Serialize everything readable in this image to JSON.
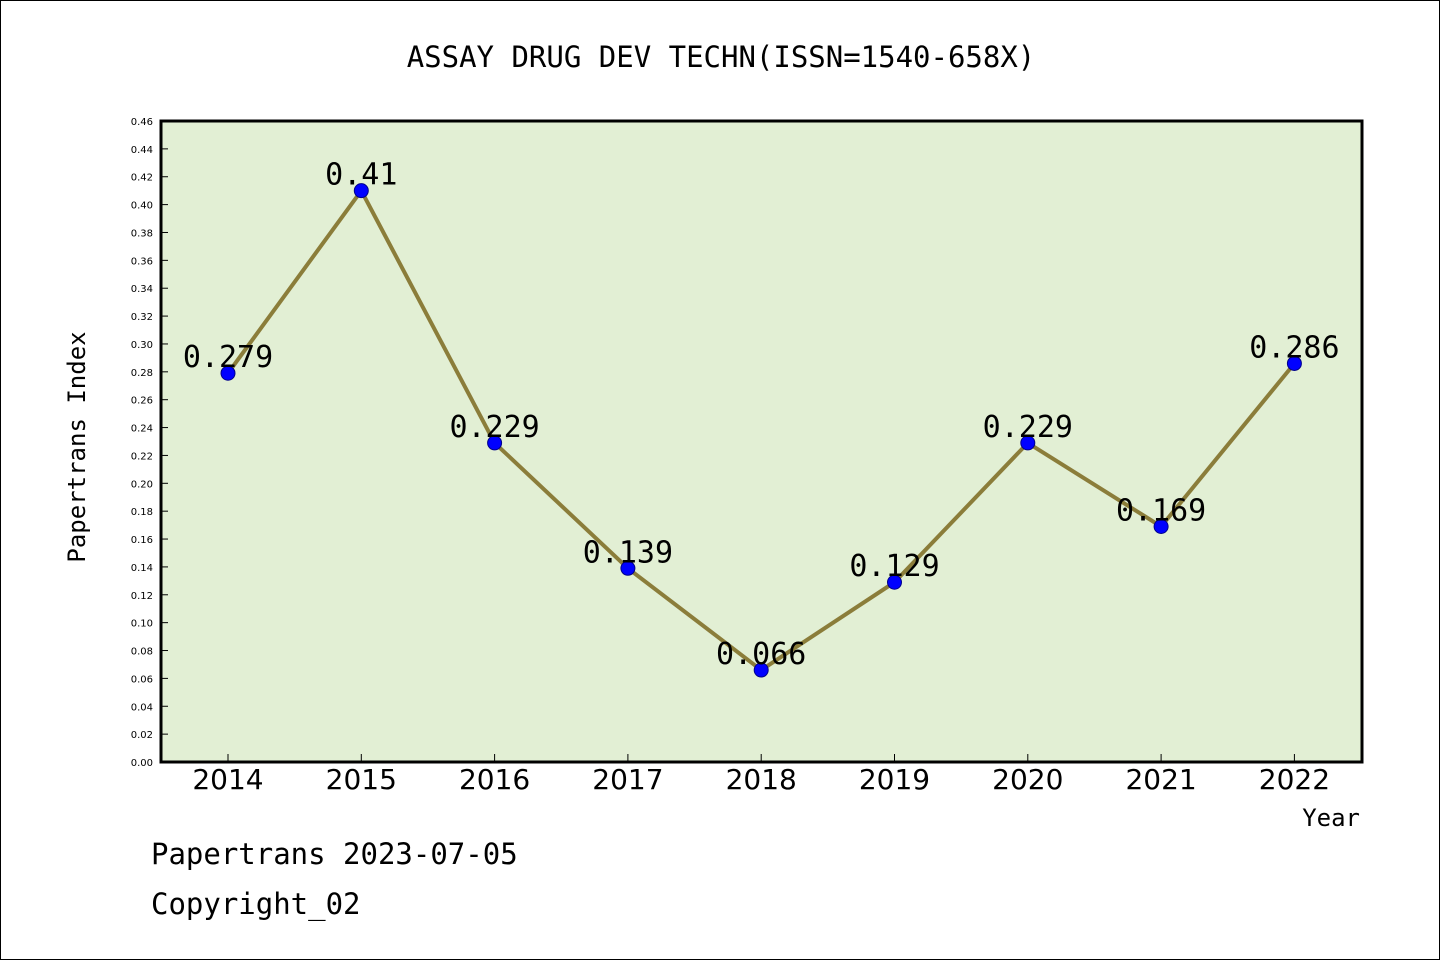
{
  "chart_data": {
    "type": "line",
    "title": "ASSAY DRUG DEV TECHN(ISSN=1540-658X)",
    "xlabel": "Year",
    "ylabel": "Papertrans Index",
    "categories": [
      "2014",
      "2015",
      "2016",
      "2017",
      "2018",
      "2019",
      "2020",
      "2021",
      "2022"
    ],
    "values": [
      0.279,
      0.41,
      0.229,
      0.139,
      0.066,
      0.129,
      0.229,
      0.169,
      0.286
    ],
    "data_labels": [
      "0.279",
      "0.41",
      "0.229",
      "0.139",
      "0.066",
      "0.129",
      "0.229",
      "0.169",
      "0.286"
    ],
    "ylim": [
      0,
      0.46
    ],
    "ytick_step": 0.02,
    "grid": false,
    "legend": "none",
    "colors": {
      "plot_background": "#e2efd4",
      "line": "#8b7d3a",
      "marker_fill": "#0000ff",
      "marker_edge": "#00008b"
    }
  },
  "footer": {
    "date_text": "Papertrans 2023-07-05",
    "copyright_text": "Copyright_02"
  }
}
